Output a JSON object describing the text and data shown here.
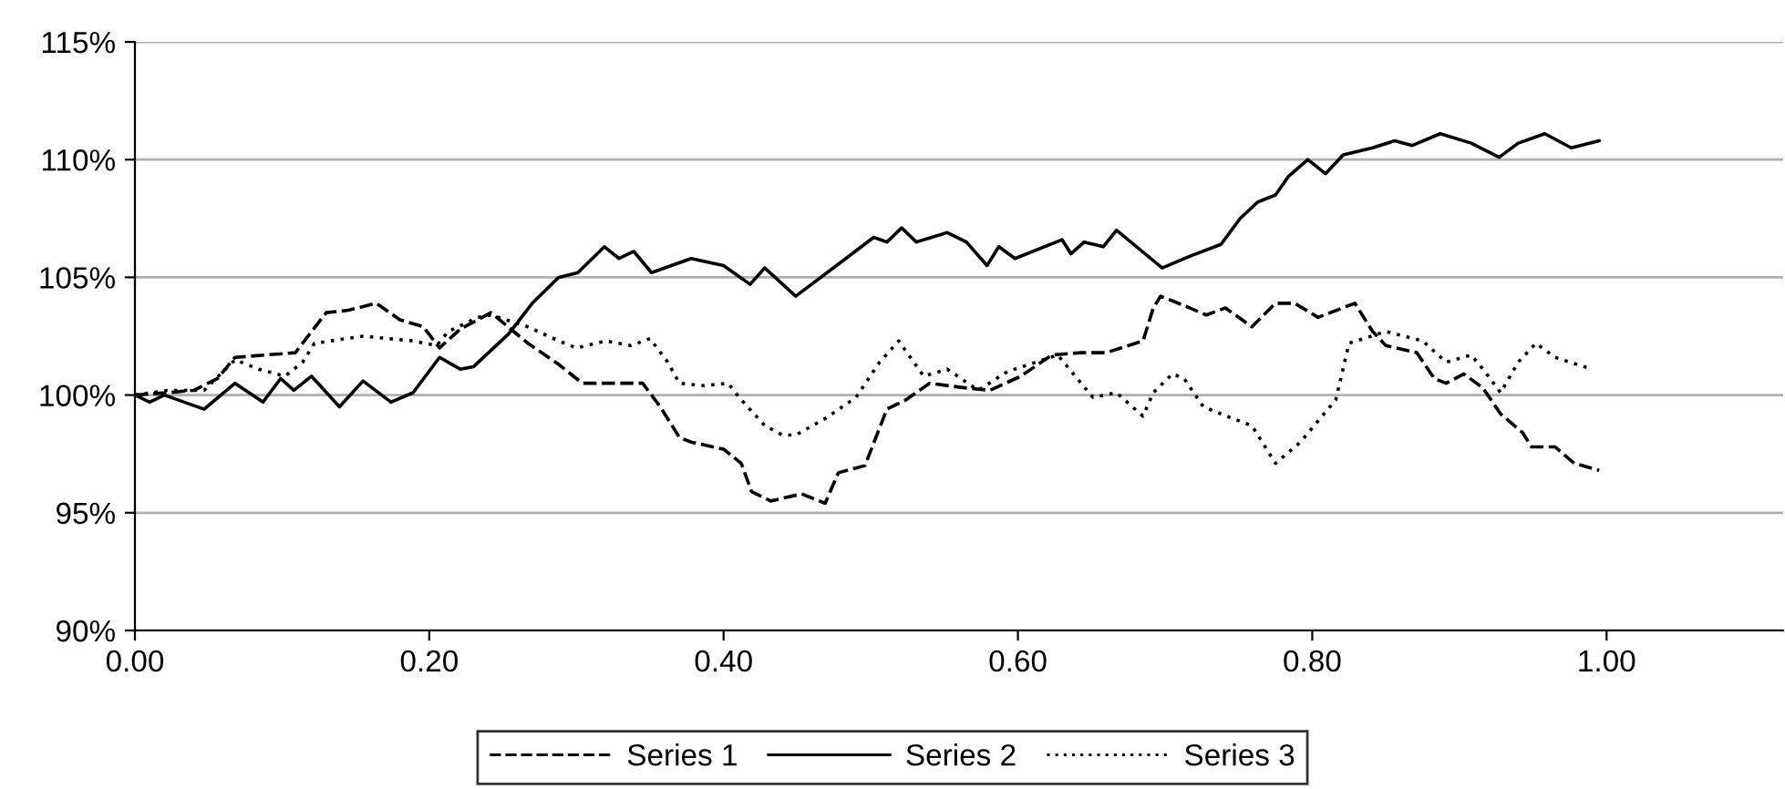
{
  "chart_data": {
    "type": "line",
    "xlim": [
      0,
      1.12
    ],
    "xticks": [
      {
        "value": 0,
        "label": "0.00"
      },
      {
        "value": 0.2,
        "label": "0.20"
      },
      {
        "value": 0.4,
        "label": "0.40"
      },
      {
        "value": 0.6,
        "label": "0.60"
      },
      {
        "value": 0.8,
        "label": "0.80"
      },
      {
        "value": 1.0,
        "label": "1.00"
      }
    ],
    "ylim": [
      90,
      115
    ],
    "yticks": [
      {
        "value": 90,
        "label": "90%"
      },
      {
        "value": 95,
        "label": "95%"
      },
      {
        "value": 100,
        "label": "100%"
      },
      {
        "value": 105,
        "label": "105%"
      },
      {
        "value": 110,
        "label": "110%"
      },
      {
        "value": 115,
        "label": "115%"
      }
    ],
    "grid": "y",
    "legend": "bottom",
    "marker": "none",
    "series": [
      {
        "name": "Series 1",
        "color": "#000000",
        "line_style": "dashed",
        "x": [
          0,
          0.022,
          0.04,
          0.056,
          0.068,
          0.109,
          0.13,
          0.145,
          0.164,
          0.18,
          0.196,
          0.207,
          0.221,
          0.242,
          0.267,
          0.288,
          0.304,
          0.329,
          0.345,
          0.357,
          0.37,
          0.378,
          0.4,
          0.412,
          0.419,
          0.432,
          0.453,
          0.469,
          0.478,
          0.496,
          0.511,
          0.524,
          0.54,
          0.565,
          0.581,
          0.602,
          0.623,
          0.643,
          0.66,
          0.685,
          0.692,
          0.697,
          0.713,
          0.728,
          0.741,
          0.759,
          0.775,
          0.788,
          0.804,
          0.829,
          0.841,
          0.85,
          0.871,
          0.883,
          0.891,
          0.903,
          0.916,
          0.928,
          0.943,
          0.949,
          0.965,
          0.978,
          0.995
        ],
        "values": [
          100.0,
          100.1,
          100.2,
          100.7,
          101.6,
          101.8,
          103.5,
          103.6,
          103.9,
          103.2,
          102.9,
          102.0,
          102.8,
          103.5,
          102.2,
          101.3,
          100.5,
          100.5,
          100.5,
          99.5,
          98.2,
          98.0,
          97.7,
          97.1,
          95.9,
          95.5,
          95.8,
          95.4,
          96.7,
          97.0,
          99.4,
          99.8,
          100.5,
          100.3,
          100.2,
          100.8,
          101.7,
          101.8,
          101.8,
          102.3,
          103.7,
          104.2,
          103.8,
          103.4,
          103.7,
          102.9,
          103.9,
          103.9,
          103.3,
          103.9,
          102.7,
          102.1,
          101.8,
          100.7,
          100.5,
          100.9,
          100.3,
          99.2,
          98.4,
          97.8,
          97.8,
          97.1,
          96.8
        ]
      },
      {
        "name": "Series 2",
        "color": "#000000",
        "line_style": "solid",
        "x": [
          0,
          0.01,
          0.02,
          0.047,
          0.068,
          0.087,
          0.099,
          0.108,
          0.12,
          0.139,
          0.155,
          0.174,
          0.189,
          0.207,
          0.221,
          0.23,
          0.254,
          0.27,
          0.288,
          0.301,
          0.319,
          0.329,
          0.339,
          0.351,
          0.378,
          0.4,
          0.418,
          0.428,
          0.449,
          0.481,
          0.502,
          0.511,
          0.521,
          0.531,
          0.552,
          0.565,
          0.579,
          0.587,
          0.598,
          0.63,
          0.636,
          0.645,
          0.658,
          0.667,
          0.698,
          0.717,
          0.738,
          0.751,
          0.763,
          0.775,
          0.784,
          0.797,
          0.809,
          0.821,
          0.841,
          0.856,
          0.868,
          0.887,
          0.908,
          0.927,
          0.94,
          0.958,
          0.976,
          0.995
        ],
        "values": [
          100.0,
          99.7,
          100.0,
          99.4,
          100.5,
          99.7,
          100.7,
          100.2,
          100.8,
          99.5,
          100.6,
          99.7,
          100.1,
          101.6,
          101.1,
          101.2,
          102.6,
          103.9,
          105.0,
          105.2,
          106.3,
          105.8,
          106.1,
          105.2,
          105.8,
          105.5,
          104.7,
          105.4,
          104.2,
          105.7,
          106.7,
          106.5,
          107.1,
          106.5,
          106.9,
          106.5,
          105.5,
          106.3,
          105.8,
          106.6,
          106.0,
          106.5,
          106.3,
          107.0,
          105.4,
          105.9,
          106.4,
          107.5,
          108.2,
          108.5,
          109.3,
          110.0,
          109.4,
          110.2,
          110.5,
          110.8,
          110.6,
          111.1,
          110.7,
          110.1,
          110.7,
          111.1,
          110.5,
          110.8
        ]
      },
      {
        "name": "Series 3",
        "color": "#000000",
        "line_style": "dotted",
        "x": [
          0,
          0.022,
          0.047,
          0.068,
          0.084,
          0.102,
          0.114,
          0.122,
          0.155,
          0.189,
          0.205,
          0.213,
          0.233,
          0.242,
          0.267,
          0.288,
          0.3,
          0.32,
          0.337,
          0.35,
          0.362,
          0.37,
          0.387,
          0.403,
          0.412,
          0.428,
          0.44,
          0.449,
          0.469,
          0.49,
          0.506,
          0.519,
          0.536,
          0.552,
          0.573,
          0.593,
          0.627,
          0.643,
          0.651,
          0.667,
          0.685,
          0.692,
          0.705,
          0.713,
          0.726,
          0.742,
          0.759,
          0.775,
          0.792,
          0.816,
          0.825,
          0.85,
          0.875,
          0.891,
          0.908,
          0.916,
          0.928,
          0.94,
          0.952,
          0.965,
          0.99
        ],
        "values": [
          100.0,
          100.2,
          100.2,
          101.5,
          101.1,
          100.8,
          101.4,
          102.2,
          102.5,
          102.3,
          102.1,
          102.7,
          103.3,
          103.4,
          102.9,
          102.3,
          102.0,
          102.3,
          102.1,
          102.4,
          101.4,
          100.5,
          100.4,
          100.5,
          99.8,
          98.7,
          98.3,
          98.3,
          99.0,
          99.9,
          101.4,
          102.3,
          100.8,
          101.1,
          100.2,
          101.0,
          101.7,
          100.5,
          99.9,
          100.1,
          99.1,
          100.1,
          100.9,
          100.7,
          99.5,
          99.1,
          98.7,
          97.1,
          98.0,
          99.8,
          102.2,
          102.7,
          102.3,
          101.4,
          101.7,
          101.1,
          100.1,
          101.4,
          102.2,
          101.6,
          101.1
        ]
      }
    ]
  }
}
